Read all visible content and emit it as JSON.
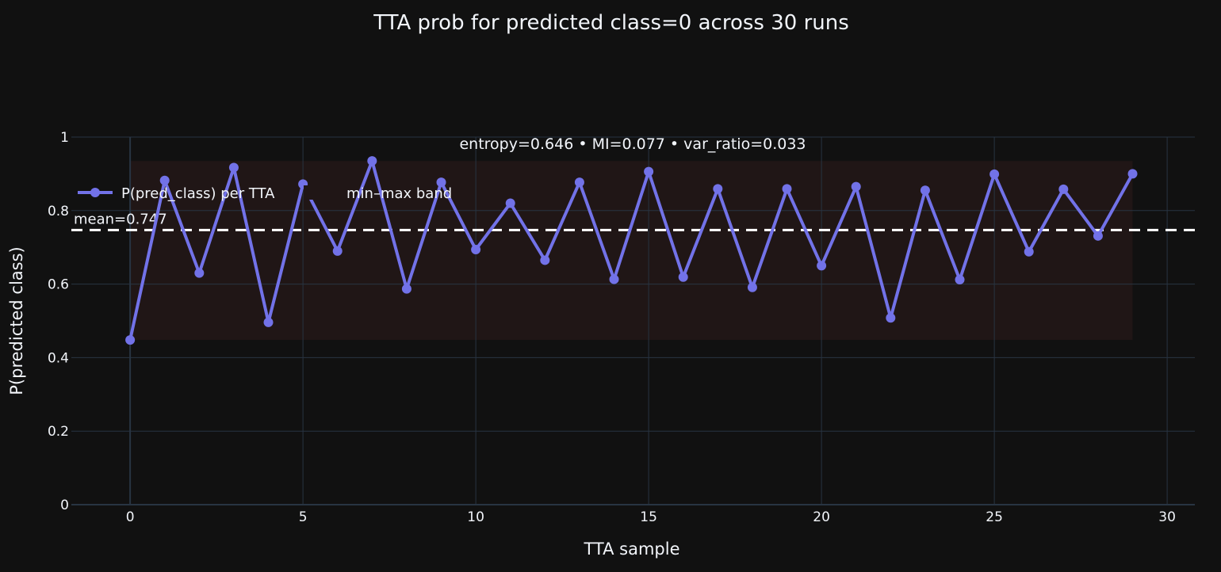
{
  "chart_data": {
    "type": "line",
    "title": "TTA prob for predicted class=0 across 30 runs",
    "xlabel": "TTA sample",
    "ylabel": "P(predicted class)",
    "xlim": [
      -1.7,
      30.8
    ],
    "ylim": [
      0,
      1
    ],
    "x_ticks": [
      0,
      5,
      10,
      15,
      20,
      25,
      30
    ],
    "y_ticks": [
      0,
      0.2,
      0.4,
      0.6,
      0.8,
      1
    ],
    "y_tick_labels": [
      "0",
      "0.2",
      "0.4",
      "0.6",
      "0.8",
      "1"
    ],
    "grid": true,
    "legend_position": "top-left",
    "series": [
      {
        "name": "P(pred_class) per TTA",
        "color": "#7272E8",
        "mode": "lines+markers",
        "x": [
          0,
          1,
          2,
          3,
          4,
          5,
          6,
          7,
          8,
          9,
          10,
          11,
          12,
          13,
          14,
          15,
          16,
          17,
          18,
          19,
          20,
          21,
          22,
          23,
          24,
          25,
          26,
          27,
          28,
          29
        ],
        "y": [
          0.448,
          0.882,
          0.63,
          0.917,
          0.496,
          0.872,
          0.69,
          0.935,
          0.587,
          0.877,
          0.694,
          0.82,
          0.665,
          0.877,
          0.613,
          0.906,
          0.619,
          0.859,
          0.591,
          0.859,
          0.65,
          0.865,
          0.508,
          0.855,
          0.612,
          0.899,
          0.688,
          0.858,
          0.731,
          0.9
        ]
      },
      {
        "name": "min–max band",
        "color": "#201616",
        "mode": "band",
        "x_range": [
          0,
          29
        ],
        "y_range": [
          0.448,
          0.935
        ]
      }
    ],
    "mean_line": {
      "value": 0.747,
      "label": "mean=0.747",
      "color": "#FFFFFF"
    },
    "annotation": "entropy=0.646 • MI=0.077 • var_ratio=0.033",
    "colors": {
      "background": "#111111",
      "grid": "#283442",
      "text": "#F2F5FA"
    }
  }
}
